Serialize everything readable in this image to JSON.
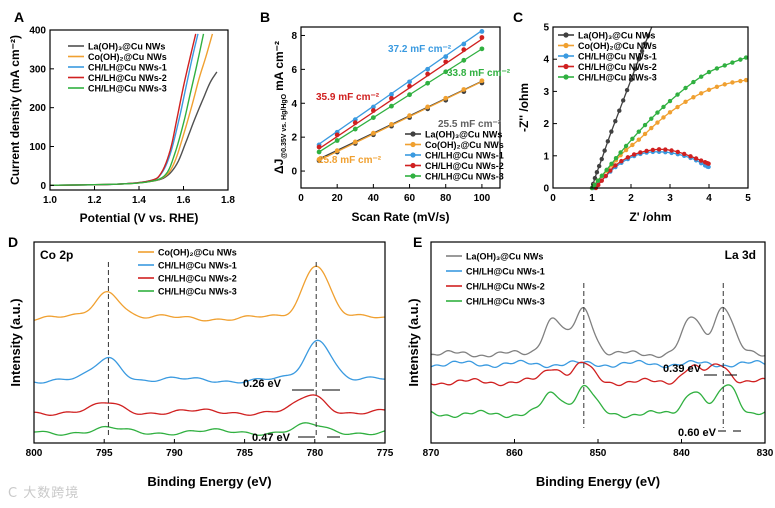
{
  "watermark": "C 大数跨境",
  "chart_data": [
    {
      "panel": "A",
      "type": "line",
      "xlabel": "Potential (V vs. RHE)",
      "ylabel": "Current density (mA cm⁻²)",
      "xlim": [
        1.0,
        1.8
      ],
      "ylim": [
        0,
        400
      ],
      "xticks": [
        "1.0",
        "1.2",
        "1.4",
        "1.6",
        "1.8"
      ],
      "yticks": [
        "0",
        "100",
        "200",
        "300",
        "400"
      ],
      "legend_position": "top-left",
      "series": [
        {
          "name": "La(OH)₃@Cu NWs",
          "color": "#505050",
          "points": [
            [
              1.0,
              0
            ],
            [
              1.3,
              3
            ],
            [
              1.45,
              10
            ],
            [
              1.52,
              22
            ],
            [
              1.57,
              55
            ],
            [
              1.61,
              110
            ],
            [
              1.65,
              170
            ],
            [
              1.69,
              225
            ],
            [
              1.72,
              265
            ],
            [
              1.75,
              292
            ]
          ]
        },
        {
          "name": "Co(OH)₂@Cu NWs",
          "color": "#f0a030",
          "points": [
            [
              1.0,
              0
            ],
            [
              1.3,
              3
            ],
            [
              1.45,
              10
            ],
            [
              1.52,
              25
            ],
            [
              1.56,
              60
            ],
            [
              1.6,
              130
            ],
            [
              1.64,
              210
            ],
            [
              1.67,
              275
            ],
            [
              1.7,
              330
            ],
            [
              1.73,
              390
            ]
          ]
        },
        {
          "name": "CH/LH@Cu NWs-1",
          "color": "#3a9ae0",
          "points": [
            [
              1.0,
              0
            ],
            [
              1.3,
              3
            ],
            [
              1.45,
              12
            ],
            [
              1.5,
              30
            ],
            [
              1.54,
              80
            ],
            [
              1.58,
              170
            ],
            [
              1.61,
              250
            ],
            [
              1.64,
              330
            ],
            [
              1.665,
              390
            ]
          ]
        },
        {
          "name": "CH/LH@Cu NWs-2",
          "color": "#d02020",
          "points": [
            [
              1.0,
              0
            ],
            [
              1.3,
              3
            ],
            [
              1.45,
              12
            ],
            [
              1.5,
              32
            ],
            [
              1.54,
              90
            ],
            [
              1.57,
              170
            ],
            [
              1.6,
              255
            ],
            [
              1.63,
              330
            ],
            [
              1.655,
              390
            ]
          ]
        },
        {
          "name": "CH/LH@Cu NWs-3",
          "color": "#30b040",
          "points": [
            [
              1.0,
              0
            ],
            [
              1.3,
              3
            ],
            [
              1.45,
              10
            ],
            [
              1.52,
              28
            ],
            [
              1.56,
              80
            ],
            [
              1.6,
              160
            ],
            [
              1.63,
              235
            ],
            [
              1.66,
              310
            ],
            [
              1.69,
              390
            ]
          ]
        }
      ]
    },
    {
      "panel": "B",
      "type": "scatter",
      "xlabel": "Scan Rate (mV/s)",
      "ylabel": "ΔJ @0.35V vs. Hg/HgO mA cm⁻²",
      "ylabel_main": "ΔJ",
      "ylabel_sub": "@0.35V vs. Hg/HgO",
      "ylabel_unit": "mA cm⁻²",
      "xlim": [
        0,
        110
      ],
      "ylim": [
        -1,
        8.5
      ],
      "xticks": [
        "0",
        "20",
        "40",
        "60",
        "80",
        "100"
      ],
      "yticks": [
        "0",
        "2",
        "4",
        "6",
        "8"
      ],
      "x": [
        10,
        20,
        30,
        40,
        50,
        60,
        70,
        80,
        90,
        100
      ],
      "legend_position": "bottom-right",
      "annotations": [
        {
          "text": "37.2 mF cm⁻²",
          "color": "#3a9ae0"
        },
        {
          "text": "33.8 mF cm⁻²",
          "color": "#30b040"
        },
        {
          "text": "35.9 mF cm⁻²",
          "color": "#d02020"
        },
        {
          "text": "25.5 mF cm⁻²",
          "color": "#606060"
        },
        {
          "text": "25.8 mF cm⁻²",
          "color": "#f0a030"
        }
      ],
      "series": [
        {
          "name": "La(OH)₃@Cu NWs",
          "color": "#404040",
          "slope": 0.051,
          "intercept": 0.2
        },
        {
          "name": "Co(OH)₂@Cu NWs",
          "color": "#f0a030",
          "slope": 0.0516,
          "intercept": 0.12
        },
        {
          "name": "CH/LH@Cu NWs-1",
          "color": "#3a9ae0",
          "slope": 0.0744,
          "intercept": 0.85
        },
        {
          "name": "CH/LH@Cu NWs-2",
          "color": "#d02020",
          "slope": 0.0718,
          "intercept": 0.6
        },
        {
          "name": "CH/LH@Cu NWs-3",
          "color": "#30b040",
          "slope": 0.0676,
          "intercept": 0.45
        }
      ]
    },
    {
      "panel": "C",
      "type": "line",
      "xlabel": "Z' /ohm",
      "ylabel": "-Z'' /ohm",
      "xlim": [
        0,
        5
      ],
      "ylim": [
        0,
        5
      ],
      "xticks": [
        "0",
        "1",
        "2",
        "3",
        "4",
        "5"
      ],
      "yticks": [
        "0",
        "1",
        "2",
        "3",
        "4",
        "5"
      ],
      "legend_position": "top-left",
      "series": [
        {
          "name": "La(OH)₃@Cu NWs",
          "color": "#404040",
          "points": [
            [
              1.0,
              0
            ],
            [
              1.1,
              0.4
            ],
            [
              1.25,
              0.9
            ],
            [
              1.45,
              1.6
            ],
            [
              1.7,
              2.4
            ],
            [
              1.95,
              3.2
            ],
            [
              2.2,
              4.0
            ],
            [
              2.4,
              4.6
            ],
            [
              2.6,
              5.2
            ]
          ]
        },
        {
          "name": "Co(OH)₂@Cu NWs",
          "color": "#f0a030",
          "points": [
            [
              1.0,
              0
            ],
            [
              1.2,
              0.3
            ],
            [
              1.5,
              0.7
            ],
            [
              1.8,
              1.1
            ],
            [
              2.2,
              1.5
            ],
            [
              2.6,
              1.95
            ],
            [
              3.0,
              2.35
            ],
            [
              3.5,
              2.75
            ],
            [
              4.0,
              3.05
            ],
            [
              4.5,
              3.25
            ],
            [
              4.95,
              3.35
            ]
          ]
        },
        {
          "name": "CH/LH@Cu NWs-1",
          "color": "#3a9ae0",
          "points": [
            [
              1.05,
              0
            ],
            [
              1.3,
              0.3
            ],
            [
              1.6,
              0.65
            ],
            [
              2.0,
              0.95
            ],
            [
              2.4,
              1.1
            ],
            [
              2.8,
              1.12
            ],
            [
              3.2,
              1.05
            ],
            [
              3.6,
              0.9
            ],
            [
              3.9,
              0.7
            ],
            [
              4.0,
              0.65
            ]
          ]
        },
        {
          "name": "CH/LH@Cu NWs-2",
          "color": "#d02020",
          "points": [
            [
              1.1,
              0
            ],
            [
              1.3,
              0.3
            ],
            [
              1.6,
              0.7
            ],
            [
              2.0,
              1.0
            ],
            [
              2.4,
              1.15
            ],
            [
              2.8,
              1.2
            ],
            [
              3.2,
              1.12
            ],
            [
              3.6,
              0.95
            ],
            [
              3.9,
              0.8
            ],
            [
              4.0,
              0.75
            ]
          ]
        },
        {
          "name": "CH/LH@Cu NWs-3",
          "color": "#30b040",
          "points": [
            [
              1.0,
              0
            ],
            [
              1.2,
              0.3
            ],
            [
              1.5,
              0.75
            ],
            [
              1.8,
              1.2
            ],
            [
              2.2,
              1.75
            ],
            [
              2.6,
              2.25
            ],
            [
              3.0,
              2.7
            ],
            [
              3.5,
              3.2
            ],
            [
              4.0,
              3.6
            ],
            [
              4.5,
              3.85
            ],
            [
              4.95,
              4.05
            ]
          ]
        }
      ]
    },
    {
      "panel": "D",
      "panel_title": "Co 2p",
      "type": "line",
      "xlabel": "Binding Energy (eV)",
      "ylabel": "Intensity (a.u.)",
      "xlim": [
        800,
        775
      ],
      "xticks": [
        "800",
        "795",
        "790",
        "785",
        "780",
        "775"
      ],
      "reference_lines": [
        794.7,
        779.9
      ],
      "legend_position": "top-center",
      "annotations": [
        {
          "text": "0.26 eV"
        },
        {
          "text": "0.47 eV"
        }
      ],
      "series": [
        {
          "name": "Co(OH)₂@Cu NWs",
          "color": "#f0a030",
          "peaks": [
            [
              794.7,
              0.5
            ],
            [
              779.9,
              1.0
            ]
          ]
        },
        {
          "name": "CH/LH@Cu NWs-1",
          "color": "#3a9ae0",
          "peaks": [
            [
              794.7,
              0.4
            ],
            [
              779.7,
              0.75
            ]
          ]
        },
        {
          "name": "CH/LH@Cu NWs-2",
          "color": "#d02020",
          "peaks": [
            [
              794.7,
              0.15
            ],
            [
              780.2,
              0.3
            ]
          ]
        },
        {
          "name": "CH/LH@Cu NWs-3",
          "color": "#30b040",
          "peaks": [
            [
              794.7,
              0.05
            ],
            [
              780.4,
              0.12
            ]
          ]
        }
      ]
    },
    {
      "panel": "E",
      "panel_title": "La 3d",
      "type": "line",
      "xlabel": "Binding Energy (eV)",
      "ylabel": "Intensity (a.u.)",
      "xlim": [
        870,
        830
      ],
      "xticks": [
        "870",
        "860",
        "850",
        "840",
        "830"
      ],
      "reference_lines": [
        851.7,
        835.0
      ],
      "legend_position": "top-left",
      "annotations": [
        {
          "text": "0.39 eV"
        },
        {
          "text": "0.60 eV"
        }
      ],
      "series": [
        {
          "name": "La(OH)₃@Cu NWs",
          "color": "#808080",
          "peaks": [
            [
              855.4,
              0.6
            ],
            [
              851.7,
              0.75
            ],
            [
              838.7,
              0.6
            ],
            [
              835.0,
              0.8
            ]
          ]
        },
        {
          "name": "CH/LH@Cu NWs-1",
          "color": "#3a9ae0",
          "peaks": []
        },
        {
          "name": "CH/LH@Cu NWs-2",
          "color": "#d02020",
          "peaks": [
            [
              855.4,
              0.25
            ],
            [
              851.8,
              0.3
            ],
            [
              838.8,
              0.25
            ],
            [
              835.4,
              0.3
            ]
          ]
        },
        {
          "name": "CH/LH@Cu NWs-3",
          "color": "#30b040",
          "peaks": [
            [
              855.4,
              0.35
            ],
            [
              851.6,
              0.45
            ],
            [
              838.6,
              0.4
            ],
            [
              834.4,
              0.5
            ]
          ]
        }
      ]
    }
  ]
}
